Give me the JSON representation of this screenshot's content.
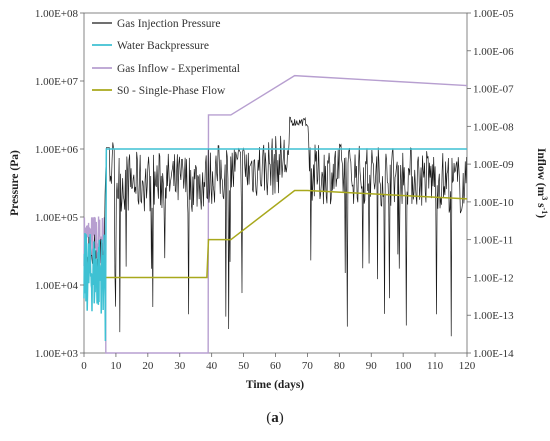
{
  "caption": {
    "open": "(",
    "letter": "a",
    "close": ")"
  },
  "chart_data": {
    "type": "line",
    "xlabel": "Time (days)",
    "ylabel": "Pressure (Pa)",
    "y2label_main": "Inflow (m",
    "y2label_sup1": "3",
    "y2label_mid": " s",
    "y2label_sup2": "-1",
    "y2label_close": ")",
    "xlim": [
      0,
      120
    ],
    "xticks": [
      "0",
      "10",
      "20",
      "30",
      "40",
      "50",
      "60",
      "70",
      "80",
      "90",
      "100",
      "110",
      "120"
    ],
    "ylim": [
      1000,
      100000000
    ],
    "y_scale": "log",
    "yticks": [
      "1.00E+03",
      "1.00E+04",
      "1.00E+05",
      "1.00E+06",
      "1.00E+07",
      "1.00E+08"
    ],
    "y2lim": [
      1e-14,
      1e-05
    ],
    "y2_scale": "log",
    "y2ticks": [
      "1.00E-14",
      "1.00E-13",
      "1.00E-12",
      "1.00E-11",
      "1.00E-10",
      "1.00E-09",
      "1.00E-08",
      "1.00E-07",
      "1.00E-06",
      "1.00E-05"
    ],
    "grid": false,
    "legend_position": "top-left",
    "series": [
      {
        "name": "Gas Injection Pressure",
        "axis": "left",
        "color": "#1a1a1a",
        "x": [
          0,
          6,
          7,
          8,
          10,
          20,
          30,
          38,
          39,
          50,
          60,
          64,
          65,
          66,
          70,
          71,
          80,
          90,
          100,
          110,
          120
        ],
        "y": [
          20000,
          20000,
          1050000,
          1050000,
          400000,
          400000,
          400000,
          400000,
          500000,
          600000,
          700000,
          900000,
          2500000,
          2500000,
          2500000,
          500000,
          550000,
          500000,
          500000,
          450000,
          350000
        ]
      },
      {
        "name": "Water Backpressure",
        "axis": "left",
        "color": "#3ec1d3",
        "x": [
          0,
          6,
          7,
          8,
          10,
          120
        ],
        "y": [
          20000,
          20000,
          1000000,
          1000000,
          1000000,
          1000000
        ]
      },
      {
        "name": "Gas Inflow - Experimental",
        "axis": "right",
        "color": "#b79fd0",
        "x": [
          0,
          6,
          7,
          38.9,
          39,
          46,
          66,
          70,
          120
        ],
        "y": [
          1e-11,
          1e-11,
          1e-14,
          1e-14,
          2e-08,
          2e-08,
          2.2e-07,
          2.1e-07,
          1.2e-07
        ]
      },
      {
        "name": "S0 - Single-Phase Flow",
        "axis": "right",
        "color": "#a8a81c",
        "x": [
          7,
          38.5,
          39,
          46,
          66,
          70,
          120
        ],
        "y": [
          1e-12,
          1e-12,
          1e-11,
          1e-11,
          2e-10,
          2e-10,
          1.2e-10
        ]
      }
    ]
  }
}
